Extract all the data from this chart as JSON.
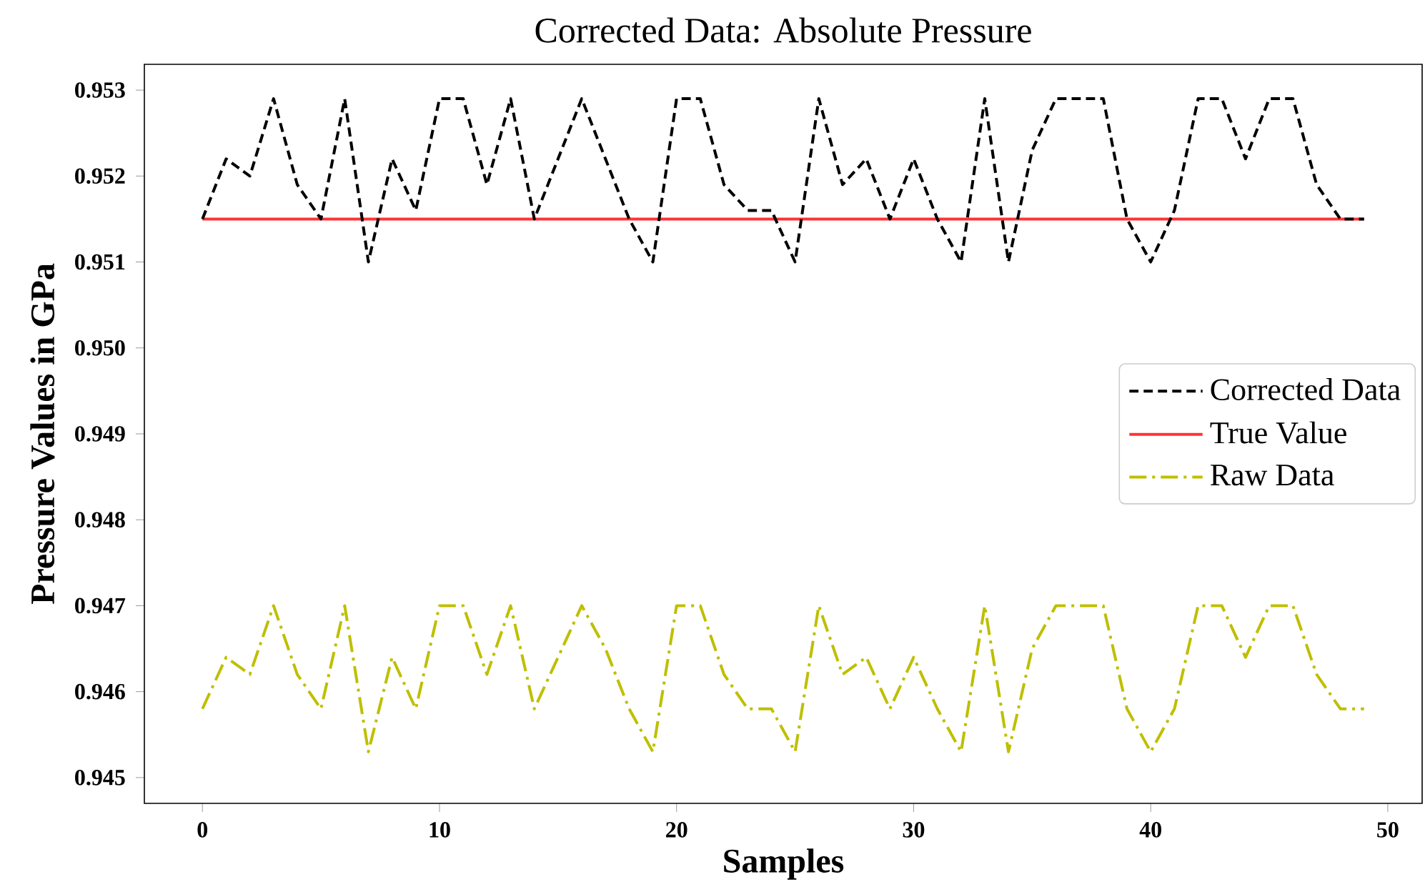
{
  "chart_data": {
    "type": "line",
    "title": "Corrected Data: Absolute Pressure",
    "xlabel": "Samples",
    "ylabel": "Pressure Values in GPa",
    "x": [
      0,
      1,
      2,
      3,
      4,
      5,
      6,
      7,
      8,
      9,
      10,
      11,
      12,
      13,
      14,
      15,
      16,
      17,
      18,
      19,
      20,
      21,
      22,
      23,
      24,
      25,
      26,
      27,
      28,
      29,
      30,
      31,
      32,
      33,
      34,
      35,
      36,
      37,
      38,
      39,
      40,
      41,
      42,
      43,
      44,
      45,
      46,
      47,
      48,
      49
    ],
    "series": [
      {
        "name": "Corrected Data",
        "color": "#000000",
        "line_style": "dashed",
        "values": [
          0.9515,
          0.9522,
          0.952,
          0.9529,
          0.9519,
          0.9515,
          0.9529,
          0.951,
          0.9522,
          0.9516,
          0.9529,
          0.9529,
          0.9519,
          0.9529,
          0.9515,
          0.9522,
          0.9529,
          0.9522,
          0.9515,
          0.951,
          0.9529,
          0.9529,
          0.9519,
          0.9516,
          0.9516,
          0.951,
          0.9529,
          0.9519,
          0.9522,
          0.9515,
          0.9522,
          0.9515,
          0.951,
          0.9529,
          0.951,
          0.9523,
          0.9529,
          0.9529,
          0.9529,
          0.9515,
          0.951,
          0.9516,
          0.9529,
          0.9529,
          0.9522,
          0.9529,
          0.9529,
          0.9519,
          0.9515,
          0.9515
        ]
      },
      {
        "name": "True Value",
        "color": "#ff3333",
        "line_style": "solid",
        "values": [
          0.9515,
          0.9515,
          0.9515,
          0.9515,
          0.9515,
          0.9515,
          0.9515,
          0.9515,
          0.9515,
          0.9515,
          0.9515,
          0.9515,
          0.9515,
          0.9515,
          0.9515,
          0.9515,
          0.9515,
          0.9515,
          0.9515,
          0.9515,
          0.9515,
          0.9515,
          0.9515,
          0.9515,
          0.9515,
          0.9515,
          0.9515,
          0.9515,
          0.9515,
          0.9515,
          0.9515,
          0.9515,
          0.9515,
          0.9515,
          0.9515,
          0.9515,
          0.9515,
          0.9515,
          0.9515,
          0.9515,
          0.9515,
          0.9515,
          0.9515,
          0.9515,
          0.9515,
          0.9515,
          0.9515,
          0.9515,
          0.9515,
          0.9515
        ]
      },
      {
        "name": "Raw Data",
        "color": "#bfbf00",
        "line_style": "dashdot",
        "values": [
          0.9458,
          0.9464,
          0.9462,
          0.947,
          0.9462,
          0.9458,
          0.947,
          0.9453,
          0.9464,
          0.9458,
          0.947,
          0.947,
          0.9462,
          0.947,
          0.9458,
          0.9464,
          0.947,
          0.9465,
          0.9458,
          0.9453,
          0.947,
          0.947,
          0.9462,
          0.9458,
          0.9458,
          0.9453,
          0.947,
          0.9462,
          0.9464,
          0.9458,
          0.9464,
          0.9458,
          0.9453,
          0.947,
          0.9453,
          0.9465,
          0.947,
          0.947,
          0.947,
          0.9458,
          0.9453,
          0.9458,
          0.947,
          0.947,
          0.9464,
          0.947,
          0.947,
          0.9462,
          0.9458,
          0.9458
        ]
      }
    ],
    "xlim": [
      -2.45,
      51.45
    ],
    "ylim": [
      0.9447,
      0.9533
    ],
    "xticks": [
      0,
      10,
      20,
      30,
      40,
      50
    ],
    "yticks": [
      {
        "value": 0.945,
        "label": "0.945"
      },
      {
        "value": 0.946,
        "label": "0.946"
      },
      {
        "value": 0.947,
        "label": "0.947"
      },
      {
        "value": 0.948,
        "label": "0.948"
      },
      {
        "value": 0.949,
        "label": "0.949"
      },
      {
        "value": 0.95,
        "label": "0.950"
      },
      {
        "value": 0.951,
        "label": "0.951"
      },
      {
        "value": 0.952,
        "label": "0.952"
      },
      {
        "value": 0.953,
        "label": "0.953"
      }
    ],
    "legend": "right",
    "grid": false
  }
}
